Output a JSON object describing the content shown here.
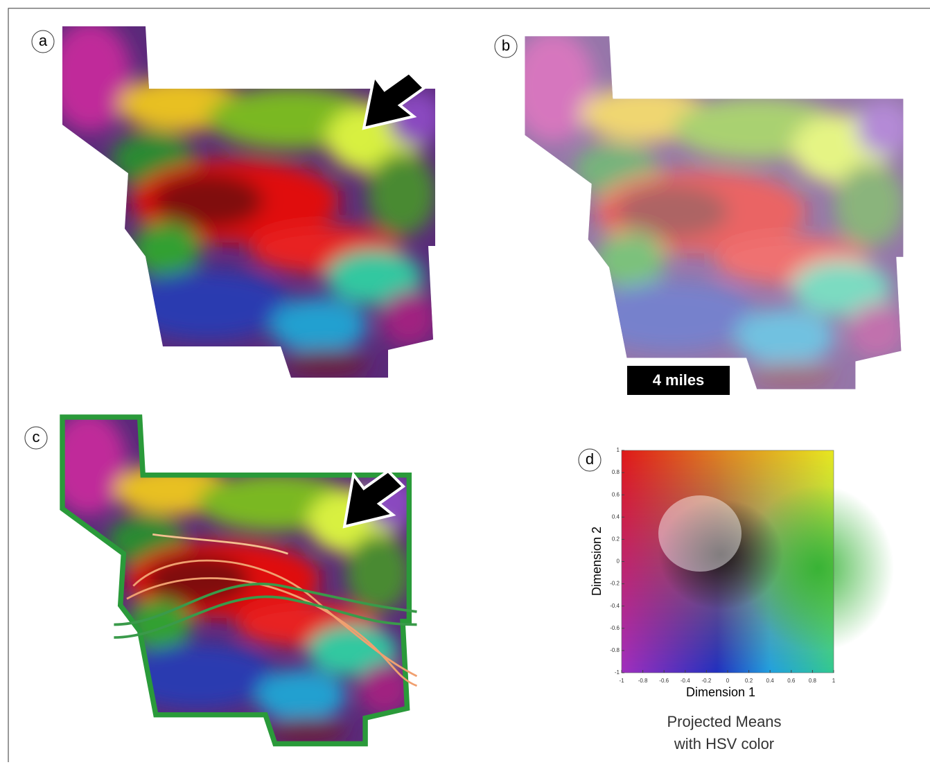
{
  "panels": {
    "a": "a",
    "b": "b",
    "c": "c",
    "d": "d"
  },
  "scale_bar": "4 miles",
  "chart_data": {
    "type": "scatter",
    "x_label": "Dimension 1",
    "y_label": "Dimension 2",
    "caption": [
      "Projected Means",
      "with HSV color"
    ],
    "xlim": [
      -1,
      1
    ],
    "ylim": [
      -1,
      1
    ],
    "xticks": [
      -1,
      -0.8,
      -0.6,
      -0.4,
      -0.2,
      0,
      0.2,
      0.4,
      0.6,
      0.8,
      1
    ],
    "yticks": [
      -1,
      -0.8,
      -0.6,
      -0.4,
      -0.2,
      0,
      0.2,
      0.4,
      0.6,
      0.8,
      1
    ]
  }
}
